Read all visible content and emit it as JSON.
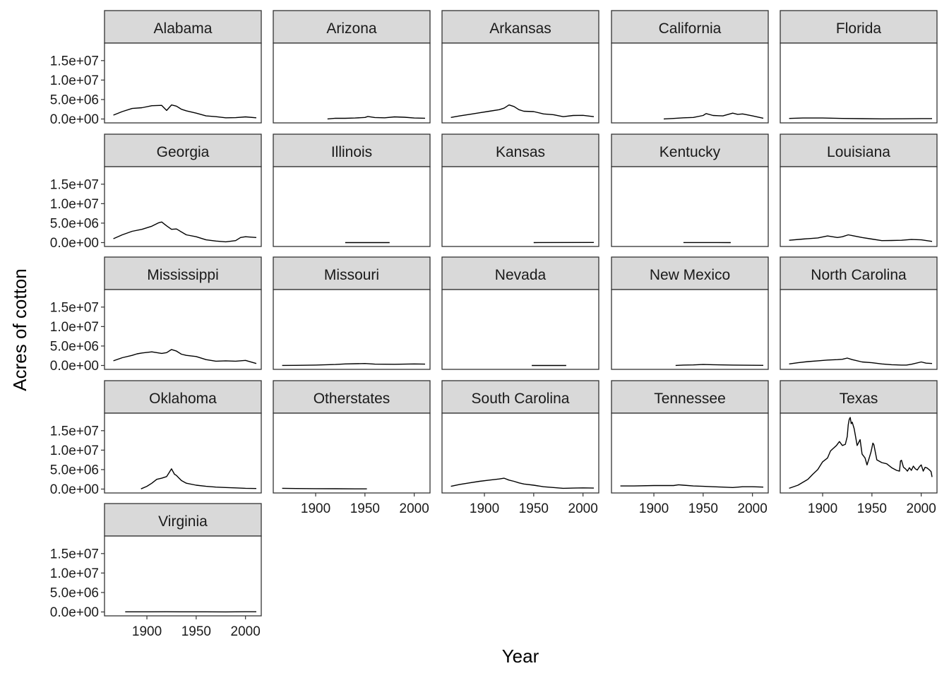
{
  "chart_data": {
    "type": "line",
    "layout": "facet-grid",
    "xlabel": "Year",
    "ylabel": "Acres of cotton",
    "xlim": [
      1857,
      2016
    ],
    "ylim": [
      -1000000,
      19500000
    ],
    "x_ticks": [
      1900,
      1950,
      2000
    ],
    "y_ticks": [
      0,
      5000000,
      10000000,
      15000000
    ],
    "y_tick_labels": [
      "0.0e+00",
      "5.0e+06",
      "1.0e+07",
      "1.5e+07"
    ],
    "grid": false,
    "legend": "none",
    "colors": {
      "line": "#000000",
      "strip_fill": "#d9d9d9",
      "panel_border": "#333333"
    },
    "panels": [
      {
        "name": "Alabama",
        "x": [
          1866,
          1875,
          1885,
          1895,
          1905,
          1915,
          1920,
          1925,
          1930,
          1935,
          1940,
          1950,
          1960,
          1970,
          1980,
          1990,
          2000,
          2011
        ],
        "y": [
          1000000,
          1900000,
          2700000,
          2900000,
          3400000,
          3500000,
          2200000,
          3600000,
          3300000,
          2500000,
          2100000,
          1500000,
          800000,
          600000,
          300000,
          350000,
          550000,
          300000
        ]
      },
      {
        "name": "Arizona",
        "x": [
          1912,
          1920,
          1930,
          1940,
          1950,
          1953,
          1960,
          1970,
          1980,
          1990,
          2000,
          2011
        ],
        "y": [
          20000,
          200000,
          180000,
          250000,
          400000,
          650000,
          380000,
          300000,
          550000,
          450000,
          250000,
          200000
        ]
      },
      {
        "name": "Arkansas",
        "x": [
          1866,
          1875,
          1885,
          1895,
          1905,
          1915,
          1920,
          1925,
          1930,
          1935,
          1940,
          1950,
          1960,
          1970,
          1980,
          1990,
          2000,
          2011
        ],
        "y": [
          400000,
          800000,
          1200000,
          1600000,
          2000000,
          2400000,
          2800000,
          3600000,
          3200000,
          2400000,
          2000000,
          1900000,
          1300000,
          1100000,
          600000,
          900000,
          950000,
          600000
        ]
      },
      {
        "name": "California",
        "x": [
          1910,
          1920,
          1930,
          1940,
          1950,
          1953,
          1960,
          1970,
          1980,
          1985,
          1990,
          2000,
          2011
        ],
        "y": [
          10000,
          150000,
          300000,
          400000,
          900000,
          1400000,
          900000,
          800000,
          1500000,
          1200000,
          1300000,
          800000,
          200000
        ]
      },
      {
        "name": "Florida",
        "x": [
          1866,
          1880,
          1900,
          1920,
          1940,
          1960,
          1980,
          2000,
          2011
        ],
        "y": [
          150000,
          250000,
          250000,
          150000,
          80000,
          40000,
          60000,
          100000,
          100000
        ]
      },
      {
        "name": "Georgia",
        "x": [
          1866,
          1875,
          1885,
          1895,
          1905,
          1912,
          1915,
          1920,
          1925,
          1930,
          1940,
          1950,
          1960,
          1970,
          1980,
          1990,
          1995,
          2000,
          2011
        ],
        "y": [
          1000000,
          2000000,
          2900000,
          3400000,
          4200000,
          5100000,
          5300000,
          4300000,
          3400000,
          3500000,
          2000000,
          1500000,
          700000,
          400000,
          200000,
          500000,
          1300000,
          1500000,
          1300000
        ]
      },
      {
        "name": "Illinois",
        "x": [
          1930,
          1975
        ],
        "y": [
          2000,
          2000
        ]
      },
      {
        "name": "Kansas",
        "x": [
          1950,
          2011
        ],
        "y": [
          2000,
          30000
        ]
      },
      {
        "name": "Kentucky",
        "x": [
          1930,
          1978
        ],
        "y": [
          8000,
          3000
        ]
      },
      {
        "name": "Louisiana",
        "x": [
          1866,
          1880,
          1895,
          1905,
          1915,
          1920,
          1926,
          1930,
          1940,
          1950,
          1960,
          1970,
          1980,
          1990,
          2000,
          2011
        ],
        "y": [
          600000,
          900000,
          1200000,
          1700000,
          1300000,
          1500000,
          2000000,
          1800000,
          1300000,
          900000,
          500000,
          550000,
          600000,
          800000,
          700000,
          300000
        ]
      },
      {
        "name": "Mississippi",
        "x": [
          1866,
          1875,
          1885,
          1890,
          1895,
          1905,
          1915,
          1920,
          1925,
          1930,
          1935,
          1940,
          1950,
          1960,
          1970,
          1980,
          1990,
          2000,
          2011
        ],
        "y": [
          1200000,
          2000000,
          2600000,
          3000000,
          3200000,
          3500000,
          3100000,
          3300000,
          4100000,
          3700000,
          2900000,
          2600000,
          2300000,
          1500000,
          1100000,
          1200000,
          1100000,
          1300000,
          500000
        ]
      },
      {
        "name": "Missouri",
        "x": [
          1866,
          1880,
          1900,
          1920,
          1930,
          1940,
          1950,
          1960,
          1980,
          2000,
          2011
        ],
        "y": [
          20000,
          40000,
          100000,
          250000,
          400000,
          450000,
          500000,
          350000,
          300000,
          400000,
          350000
        ]
      },
      {
        "name": "Nevada",
        "x": [
          1948,
          1983
        ],
        "y": [
          4000,
          4000
        ]
      },
      {
        "name": "New Mexico",
        "x": [
          1922,
          1930,
          1940,
          1950,
          1960,
          1970,
          1980,
          1990,
          2000,
          2011
        ],
        "y": [
          10000,
          100000,
          150000,
          250000,
          200000,
          150000,
          100000,
          70000,
          60000,
          40000
        ]
      },
      {
        "name": "North Carolina",
        "x": [
          1866,
          1875,
          1885,
          1895,
          1905,
          1915,
          1920,
          1925,
          1930,
          1940,
          1950,
          1960,
          1970,
          1980,
          1985,
          1990,
          2000,
          2005,
          2011
        ],
        "y": [
          400000,
          700000,
          1000000,
          1200000,
          1400000,
          1500000,
          1600000,
          1900000,
          1500000,
          900000,
          700000,
          400000,
          200000,
          100000,
          100000,
          300000,
          900000,
          600000,
          500000
        ]
      },
      {
        "name": "Oklahoma",
        "x": [
          1894,
          1900,
          1905,
          1910,
          1915,
          1920,
          1922,
          1925,
          1928,
          1930,
          1935,
          1940,
          1950,
          1960,
          1970,
          1980,
          1990,
          2000,
          2011
        ],
        "y": [
          50000,
          700000,
          1500000,
          2500000,
          2800000,
          3200000,
          4000000,
          5200000,
          3800000,
          3500000,
          2200000,
          1500000,
          1000000,
          700000,
          500000,
          400000,
          300000,
          200000,
          150000
        ]
      },
      {
        "name": "Otherstates",
        "x": [
          1866,
          1880,
          1900,
          1920,
          1940,
          1952
        ],
        "y": [
          200000,
          150000,
          100000,
          80000,
          60000,
          50000
        ]
      },
      {
        "name": "South Carolina",
        "x": [
          1866,
          1875,
          1885,
          1895,
          1905,
          1915,
          1920,
          1925,
          1930,
          1935,
          1940,
          1950,
          1960,
          1970,
          1980,
          1990,
          2000,
          2011
        ],
        "y": [
          700000,
          1200000,
          1600000,
          2000000,
          2300000,
          2600000,
          2800000,
          2300000,
          2000000,
          1600000,
          1300000,
          1000000,
          600000,
          400000,
          200000,
          250000,
          300000,
          250000
        ]
      },
      {
        "name": "Tennessee",
        "x": [
          1866,
          1880,
          1900,
          1920,
          1925,
          1930,
          1940,
          1950,
          1960,
          1970,
          1980,
          1990,
          2000,
          2011
        ],
        "y": [
          800000,
          800000,
          900000,
          900000,
          1100000,
          1000000,
          800000,
          700000,
          600000,
          500000,
          400000,
          600000,
          600000,
          500000
        ]
      },
      {
        "name": "Texas",
        "x": [
          1866,
          1875,
          1885,
          1890,
          1895,
          1900,
          1905,
          1908,
          1911,
          1914,
          1917,
          1920,
          1923,
          1925,
          1926,
          1927,
          1928,
          1929,
          1930,
          1932,
          1935,
          1938,
          1940,
          1943,
          1945,
          1947,
          1949,
          1950,
          1951,
          1952,
          1955,
          1960,
          1965,
          1970,
          1975,
          1978,
          1979,
          1980,
          1982,
          1984,
          1986,
          1988,
          1990,
          1992,
          1994,
          1996,
          1998,
          2000,
          2002,
          2004,
          2006,
          2008,
          2010,
          2011
        ],
        "y": [
          200000,
          1000000,
          2500000,
          3800000,
          5000000,
          7000000,
          8000000,
          9800000,
          10500000,
          11200000,
          12200000,
          11200000,
          11500000,
          13500000,
          16500000,
          17900000,
          18400000,
          16800000,
          17200000,
          15500000,
          11200000,
          12700000,
          9000000,
          8000000,
          6200000,
          7800000,
          9500000,
          10600000,
          11800000,
          11400000,
          7500000,
          6800000,
          6500000,
          5500000,
          4800000,
          4600000,
          7200000,
          7400000,
          5600000,
          5200000,
          4600000,
          5500000,
          4800000,
          5900000,
          5200000,
          4900000,
          5700000,
          6200000,
          4600000,
          5600000,
          5400000,
          5000000,
          4500000,
          3100000
        ]
      },
      {
        "name": "Virginia",
        "x": [
          1878,
          1900,
          1920,
          1940,
          1960,
          1980,
          2000,
          2011
        ],
        "y": [
          40000,
          40000,
          60000,
          40000,
          30000,
          20000,
          50000,
          60000
        ]
      }
    ]
  }
}
